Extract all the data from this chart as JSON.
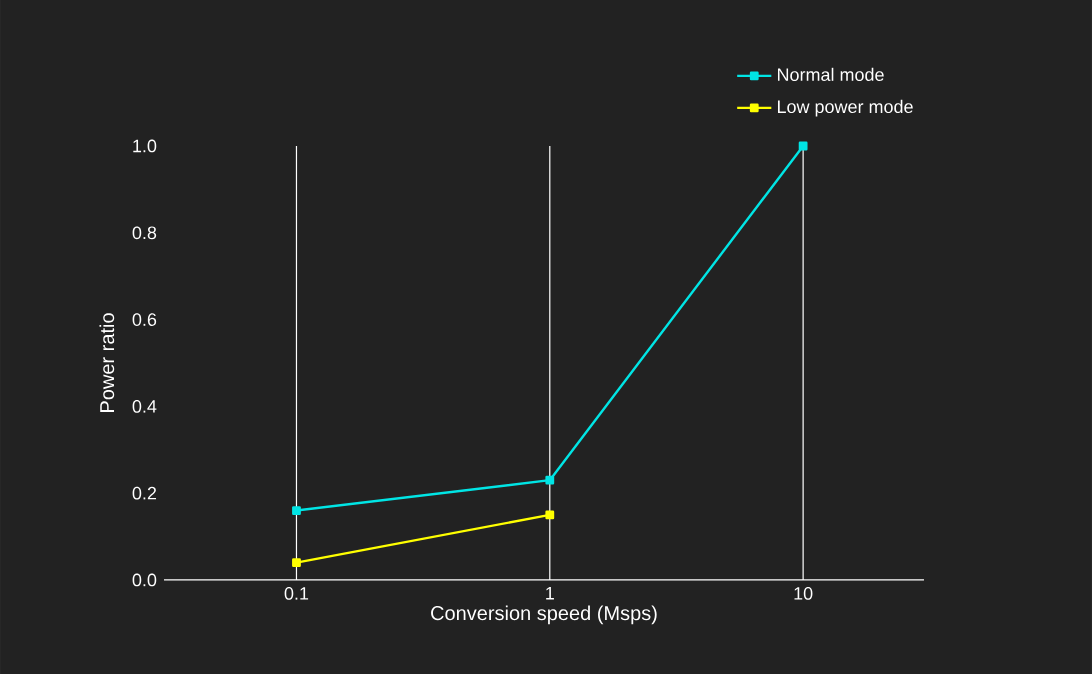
{
  "chart_data": {
    "type": "line",
    "xlabel": "Conversion speed (Msps)",
    "ylabel": "Power ratio",
    "x": [
      0.1,
      1,
      10
    ],
    "series": [
      {
        "name": "Normal mode",
        "color": "#00e5e5",
        "values": [
          0.16,
          0.23,
          1.0
        ]
      },
      {
        "name": "Low power mode",
        "color": "#ffff00",
        "x": [
          0.1,
          1
        ],
        "values": [
          0.04,
          0.15
        ]
      }
    ],
    "log": "x",
    "xlim": [
      0.03,
      30
    ],
    "ylim": [
      0,
      1
    ],
    "xticks": [
      0.1,
      1,
      10
    ],
    "yticks": [
      {
        "value": 0,
        "label": "0.0"
      },
      0.2,
      0.4,
      0.6,
      0.8,
      {
        "value": 1,
        "label": "1.0"
      }
    ],
    "grid": "x",
    "legend": "top right",
    "marker": "square",
    "line_style": "solid"
  }
}
